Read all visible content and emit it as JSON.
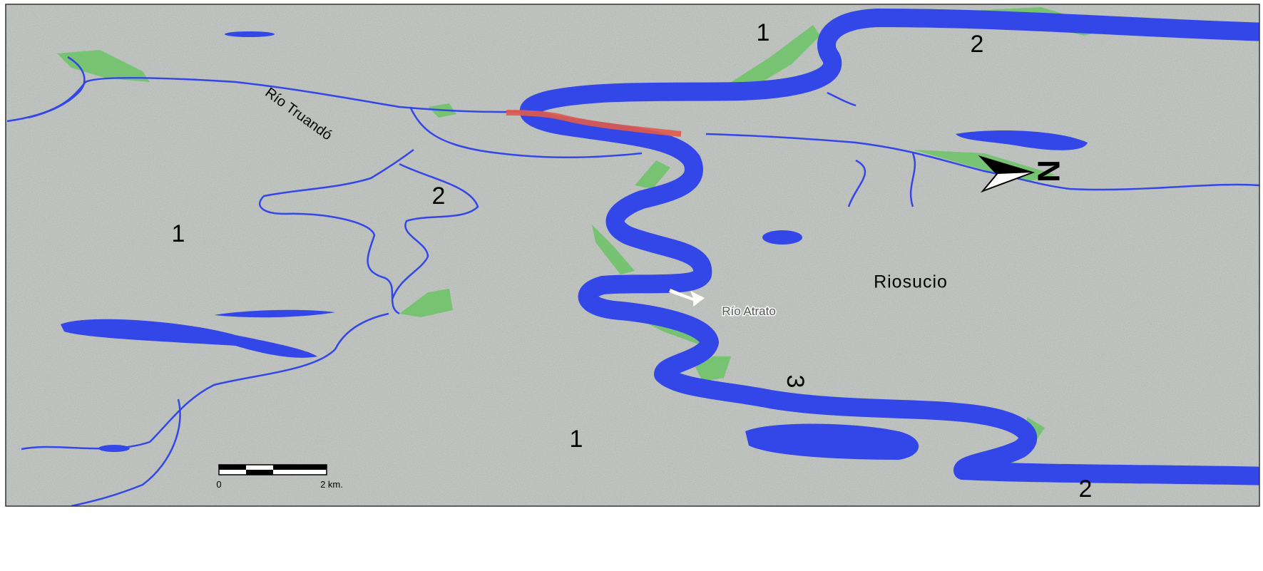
{
  "rivers": [
    "Río Truandó",
    "Río Atrato"
  ],
  "town": "Riosucio",
  "units": [
    "1",
    "2",
    "1",
    "2",
    "1",
    "3",
    "2"
  ],
  "scale_bar": {
    "start": "0",
    "end": "2 km."
  },
  "north_arrow": "N"
}
